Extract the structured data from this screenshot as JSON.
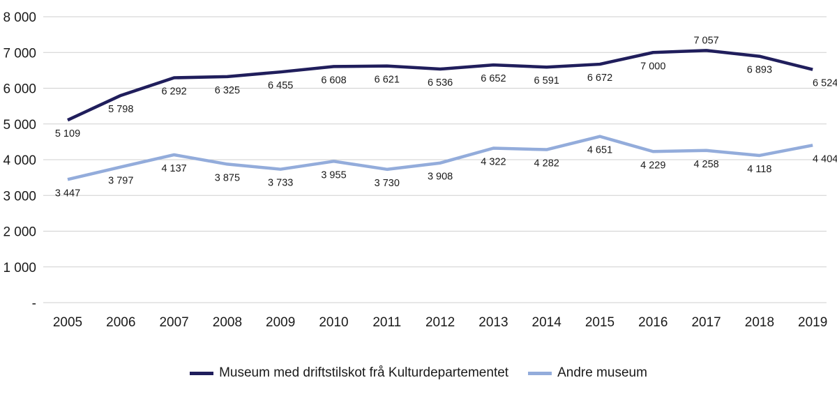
{
  "chart_data": {
    "type": "line",
    "title": "",
    "xlabel": "",
    "ylabel": "",
    "ylim": [
      0,
      8000
    ],
    "yticks": [
      "-",
      "1 000",
      "2 000",
      "3 000",
      "4 000",
      "5 000",
      "6 000",
      "7 000",
      "8 000"
    ],
    "ytick_values": [
      0,
      1000,
      2000,
      3000,
      4000,
      5000,
      6000,
      7000,
      8000
    ],
    "grid": true,
    "legend_placement": "bottom-center",
    "x": [
      "2005",
      "2006",
      "2007",
      "2008",
      "2009",
      "2010",
      "2011",
      "2012",
      "2013",
      "2014",
      "2015",
      "2016",
      "2017",
      "2018",
      "2019"
    ],
    "series": [
      {
        "name": "Museum med driftstilskot frå Kulturdepartementet",
        "color": "#201e5c",
        "values": [
          5109,
          5798,
          6292,
          6325,
          6455,
          6608,
          6621,
          6536,
          6652,
          6591,
          6672,
          7000,
          7057,
          6893,
          6524
        ],
        "labels": [
          "5 109",
          "5 798",
          "6 292",
          "6 325",
          "6 455",
          "6 608",
          "6 621",
          "6 536",
          "6 652",
          "6 591",
          "6 672",
          "7 000",
          "7 057",
          "6 893",
          "6 524"
        ]
      },
      {
        "name": "Andre museum",
        "color": "#93acdb",
        "values": [
          3447,
          3797,
          4137,
          3875,
          3733,
          3955,
          3730,
          3908,
          4322,
          4282,
          4651,
          4229,
          4258,
          4118,
          4404
        ],
        "labels": [
          "3 447",
          "3 797",
          "4 137",
          "3 875",
          "3 733",
          "3 955",
          "3 730",
          "3 908",
          "4 322",
          "4 282",
          "4 651",
          "4 229",
          "4 258",
          "4 118",
          "4 404"
        ]
      }
    ]
  }
}
